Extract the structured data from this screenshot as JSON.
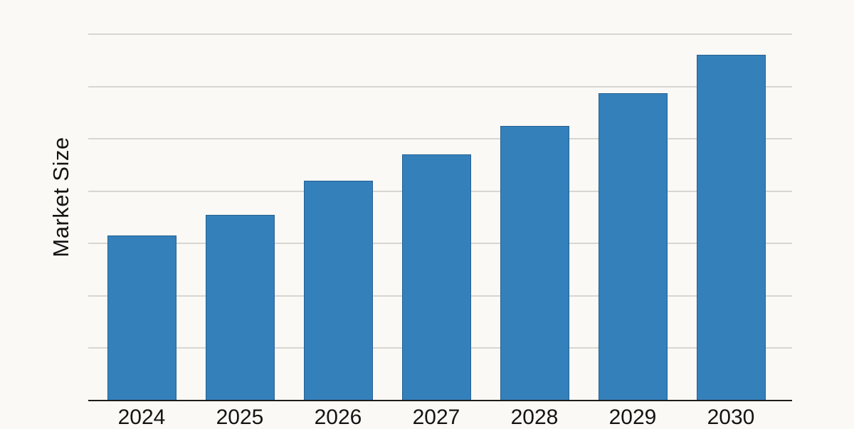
{
  "chart_data": {
    "type": "bar",
    "title": "",
    "xlabel": "",
    "ylabel": "Market Size",
    "categories": [
      "2024",
      "2025",
      "2026",
      "2027",
      "2028",
      "2029",
      "2030"
    ],
    "values": [
      3.15,
      3.55,
      4.2,
      4.7,
      5.25,
      5.87,
      6.6
    ],
    "ylim": [
      0,
      7
    ],
    "y_tick_labels": [],
    "gridlines": "horizontal",
    "legend_position": "none"
  },
  "colors": {
    "background": "#fbf9f5",
    "bar_fill": "#3480ba",
    "bar_edge": "#266195",
    "gridline": "#d9d6d1",
    "axis_line": "#1d1d1b",
    "text": "#141414"
  }
}
